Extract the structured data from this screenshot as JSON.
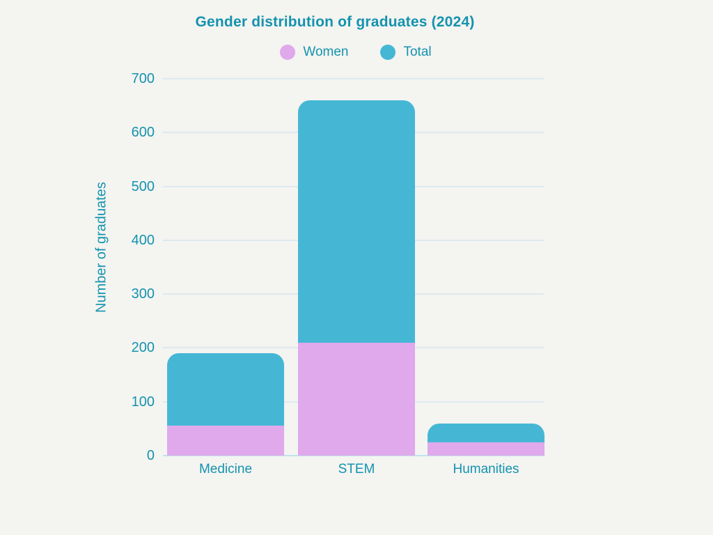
{
  "colors": {
    "background": "#f4f4f1",
    "text": "#1493ae",
    "gridline": "#dde9ee",
    "baseline": "#bfe3ed",
    "women": "#dfa9ec",
    "total": "#45b7d5"
  },
  "chart_data": {
    "type": "bar",
    "overlay": true,
    "title": "Gender distribution of graduates (2024)",
    "categories": [
      "Medicine",
      "STEM",
      "Humanities"
    ],
    "series": [
      {
        "name": "Women",
        "color": "#dfa9ec",
        "values": [
          55,
          210,
          25
        ]
      },
      {
        "name": "Total",
        "color": "#45b7d5",
        "values": [
          190,
          660,
          60
        ]
      }
    ],
    "xlabel": "",
    "ylabel": "Number of graduates",
    "yticks": [
      0,
      100,
      200,
      300,
      400,
      500,
      600,
      700
    ],
    "ylim": [
      0,
      700
    ],
    "grid": true,
    "legend_position": "top"
  }
}
